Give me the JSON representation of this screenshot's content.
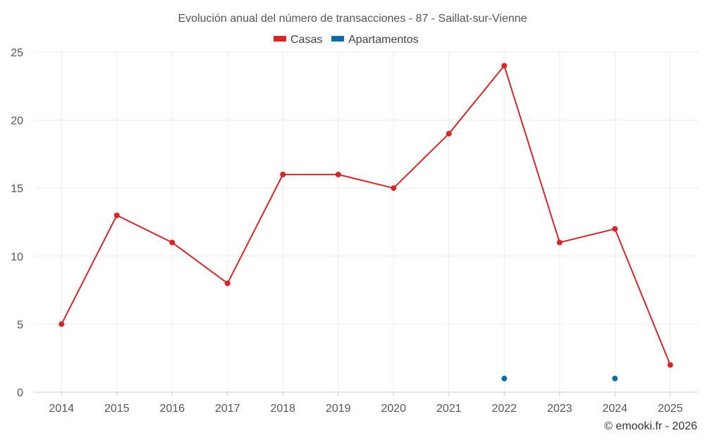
{
  "chart_data": {
    "type": "line",
    "title": "Evolución anual del número de transacciones - 87 - Saillat-sur-Vienne",
    "categories": [
      "2014",
      "2015",
      "2016",
      "2017",
      "2018",
      "2019",
      "2020",
      "2021",
      "2022",
      "2023",
      "2024",
      "2025"
    ],
    "series": [
      {
        "name": "Casas",
        "color": "#d62728",
        "values": [
          5,
          13,
          11,
          8,
          16,
          16,
          15,
          19,
          24,
          11,
          12,
          2
        ]
      },
      {
        "name": "Apartamentos",
        "color": "#0b6aa7",
        "values": [
          null,
          null,
          null,
          null,
          null,
          null,
          null,
          null,
          1,
          null,
          1,
          null
        ]
      }
    ],
    "ylim": [
      0,
      25
    ],
    "yticks": [
      0,
      5,
      10,
      15,
      20,
      25
    ],
    "grid": true,
    "legend": "top-center",
    "credit": "© emooki.fr - 2026"
  }
}
